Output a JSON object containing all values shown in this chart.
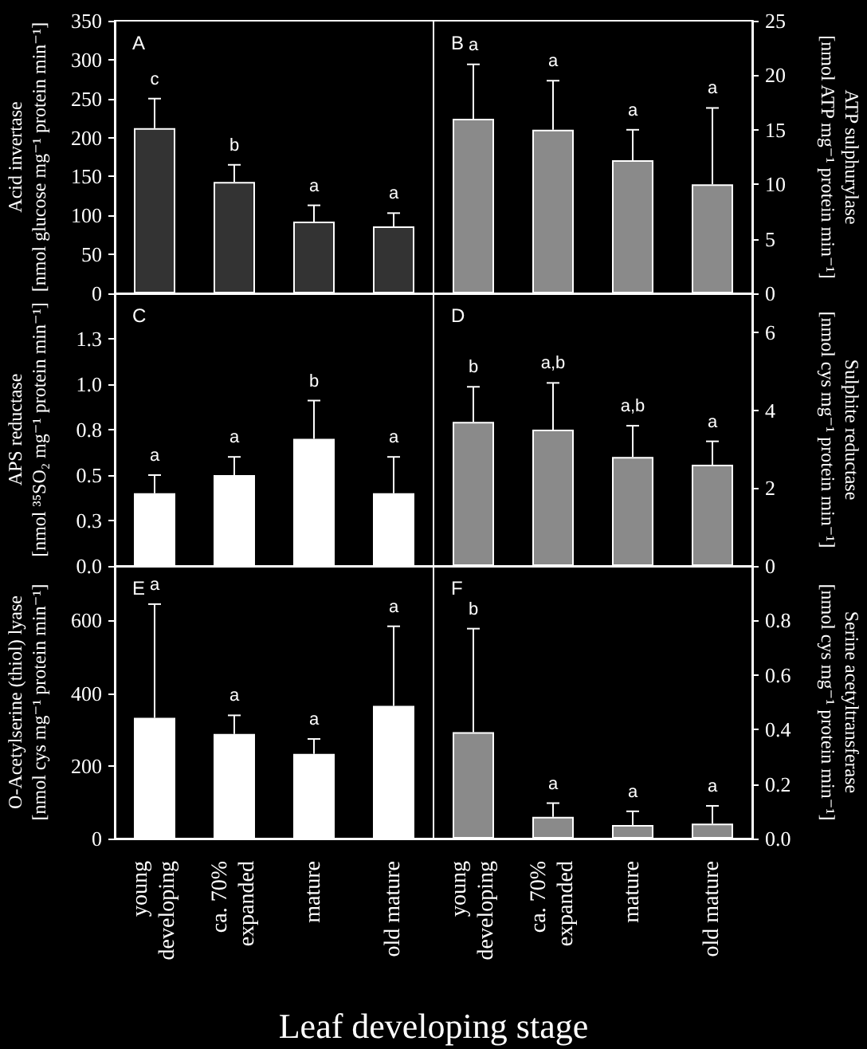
{
  "chart_data": [
    {
      "type": "bar",
      "title": "A",
      "categories": [
        null,
        null,
        null,
        null
      ],
      "tick_labels": "y",
      "ylabel": "Acid invertase\n[nmol glucose mg⁻¹ protein min⁻¹]",
      "ylim": [
        0,
        350
      ],
      "yticks": [
        0,
        50,
        100,
        150,
        200,
        250,
        300,
        350
      ],
      "series": [
        {
          "color": "#333333",
          "values": [
            212,
            143,
            92,
            86
          ],
          "errors": [
            [
              212,
              250
            ],
            [
              143,
              165
            ],
            [
              92,
              113
            ],
            [
              86,
              103
            ]
          ]
        }
      ],
      "annotations": [
        "c",
        "b",
        "a",
        "a"
      ]
    },
    {
      "type": "bar",
      "title": "B",
      "categories": [
        null,
        null,
        null,
        null
      ],
      "tick_labels": "y",
      "ylabel": "ATP sulphurylase\n[nmol ATP mg⁻¹ protein min⁻¹]",
      "ylim": [
        0,
        25
      ],
      "yticks": [
        0,
        5,
        10,
        15,
        20,
        25
      ],
      "series": [
        {
          "color": "#8a8a8a",
          "values": [
            16,
            15,
            12.2,
            10
          ],
          "errors": [
            [
              16,
              21
            ],
            [
              15,
              19.5
            ],
            [
              12.2,
              15
            ],
            [
              10,
              17
            ]
          ]
        }
      ],
      "annotations": [
        "a",
        "a",
        "a",
        "a"
      ]
    },
    {
      "type": "bar",
      "title": "C",
      "categories": [
        null,
        null,
        null,
        null
      ],
      "tick_labels": "y",
      "ylabel": "APS reductase\n[nmol ³⁵SO₂ mg⁻¹ protein min⁻¹]",
      "ylim": [
        0,
        1.5
      ],
      "yticks": [
        {
          "value": 0,
          "label": "0.0"
        },
        {
          "value": 0.25,
          "label": "0.3"
        },
        {
          "value": 0.5,
          "label": "0.5"
        },
        {
          "value": 0.75,
          "label": "0.8"
        },
        {
          "value": 1,
          "label": "1.0"
        },
        {
          "value": 1.25,
          "label": "1.3"
        }
      ],
      "series": [
        {
          "color": "#ffffff",
          "values": [
            0.4,
            0.5,
            0.7,
            0.4
          ],
          "errors": [
            [
              0.4,
              0.5
            ],
            [
              0.5,
              0.6
            ],
            [
              0.7,
              0.91
            ],
            [
              0.4,
              0.6
            ]
          ]
        }
      ],
      "annotations": [
        "a",
        "a",
        "b",
        "a"
      ]
    },
    {
      "type": "bar",
      "title": "D",
      "categories": [
        null,
        null,
        null,
        null
      ],
      "tick_labels": "y",
      "ylabel": "Sulphite reductase\n[nmol cys mg⁻¹ protein min⁻¹]",
      "ylim": [
        0,
        7
      ],
      "yticks": [
        0,
        2,
        4,
        6
      ],
      "series": [
        {
          "color": "#8a8a8a",
          "values": [
            3.7,
            3.5,
            2.8,
            2.6
          ],
          "errors": [
            [
              3.7,
              4.6
            ],
            [
              3.5,
              4.7
            ],
            [
              2.8,
              3.6
            ],
            [
              2.6,
              3.2
            ]
          ]
        }
      ],
      "annotations": [
        "b",
        "a,b",
        "a,b",
        "a"
      ]
    },
    {
      "type": "bar",
      "title": "E",
      "categories": [
        "young\ndeveloping",
        "ca. 70%\nexpanded",
        "mature",
        "old mature"
      ],
      "xlabel": "Leaf developing stage",
      "ylabel": "O-Acetylserine (thiol) lyase\n[nmol cys mg⁻¹ protein min⁻¹]",
      "ylim": [
        0,
        750
      ],
      "yticks": [
        0,
        200,
        400,
        600
      ],
      "series": [
        {
          "color": "#ffffff",
          "values": [
            332,
            288,
            233,
            365
          ],
          "errors": [
            [
              332,
              645
            ],
            [
              288,
              339
            ],
            [
              233,
              274
            ],
            [
              365,
              584
            ]
          ]
        }
      ],
      "annotations": [
        "a",
        "a",
        "a",
        "a"
      ]
    },
    {
      "type": "bar",
      "title": "F",
      "categories": [
        "young\ndeveloping",
        "ca. 70%\nexpanded",
        "mature",
        "old mature"
      ],
      "ylabel": "Serine acetyltransferase\n[nmol cys mg⁻¹ protein min⁻¹]",
      "ylim": [
        0,
        1
      ],
      "yticks": [
        {
          "value": 0,
          "label": "0.0"
        },
        0.2,
        0.4,
        0.6,
        0.8
      ],
      "series": [
        {
          "color": "#8a8a8a",
          "values": [
            0.39,
            0.08,
            0.05,
            0.055
          ],
          "errors": [
            [
              0.39,
              0.77
            ],
            [
              0.08,
              0.13
            ],
            [
              0.05,
              0.1
            ],
            [
              0.055,
              0.12
            ]
          ]
        }
      ],
      "annotations": [
        "b",
        "a",
        "a",
        "a"
      ]
    }
  ]
}
